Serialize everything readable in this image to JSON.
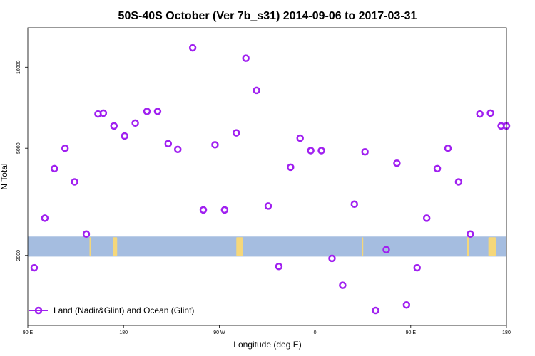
{
  "chart_data": {
    "type": "scatter",
    "title": "50S-40S October (Ver 7b_s31)   2014-09-06 to 2017-03-31",
    "xlabel": "Longitude (deg E)",
    "ylabel": "N Total",
    "x_ticks": [
      {
        "value": 90,
        "label": "90 E"
      },
      {
        "value": 180,
        "label": "180"
      },
      {
        "value": 270,
        "label": "90 W"
      },
      {
        "value": 360,
        "label": "0"
      },
      {
        "value": 450,
        "label": "90 E"
      },
      {
        "value": 540,
        "label": "180"
      }
    ],
    "y_ticks": [
      {
        "value": 2000,
        "label": "2000"
      },
      {
        "value": 5000,
        "label": "5000"
      },
      {
        "value": 10000,
        "label": "10000"
      }
    ],
    "xlim": [
      90,
      540
    ],
    "ylim": [
      1100,
      14000
    ],
    "y_scale": "log",
    "grid": false,
    "legend_position": "bottom-left",
    "colors": {
      "series": "#a020f0",
      "land_band": "#a5bde0",
      "land_patch": "#f5d77a"
    },
    "series": [
      {
        "name": "Land (Nadir&Glint) and Ocean (Glint)",
        "x": [
          96,
          106,
          115,
          125,
          134,
          145,
          156,
          161,
          171,
          181,
          191,
          202,
          212,
          222,
          231,
          245,
          255,
          266,
          275,
          286,
          295,
          305,
          316,
          326,
          337,
          346,
          356,
          366,
          376,
          386,
          397,
          407,
          417,
          427,
          437,
          446,
          456,
          465,
          475,
          485,
          495,
          506,
          515,
          525,
          535,
          540
        ],
        "y": [
          1800,
          2750,
          4200,
          5000,
          3750,
          2400,
          6700,
          6750,
          6050,
          5550,
          6200,
          6850,
          6850,
          5200,
          4950,
          11800,
          2950,
          5150,
          2950,
          5700,
          10800,
          8200,
          3050,
          1820,
          4250,
          5450,
          4900,
          4900,
          1950,
          1550,
          3100,
          4850,
          1250,
          2100,
          4400,
          1310,
          1800,
          2750,
          4200,
          5000,
          3750,
          2400,
          6700,
          6750,
          6050,
          6050
        ]
      }
    ],
    "land_band": {
      "y_range": [
        1980,
        2350
      ]
    },
    "land_patches": [
      {
        "x_range": [
          148,
          149
        ]
      },
      {
        "x_range": [
          170,
          174
        ]
      },
      {
        "x_range": [
          286,
          292
        ]
      },
      {
        "x_range": [
          404,
          405
        ]
      },
      {
        "x_range": [
          503,
          505
        ]
      },
      {
        "x_range": [
          523,
          530
        ]
      }
    ]
  }
}
